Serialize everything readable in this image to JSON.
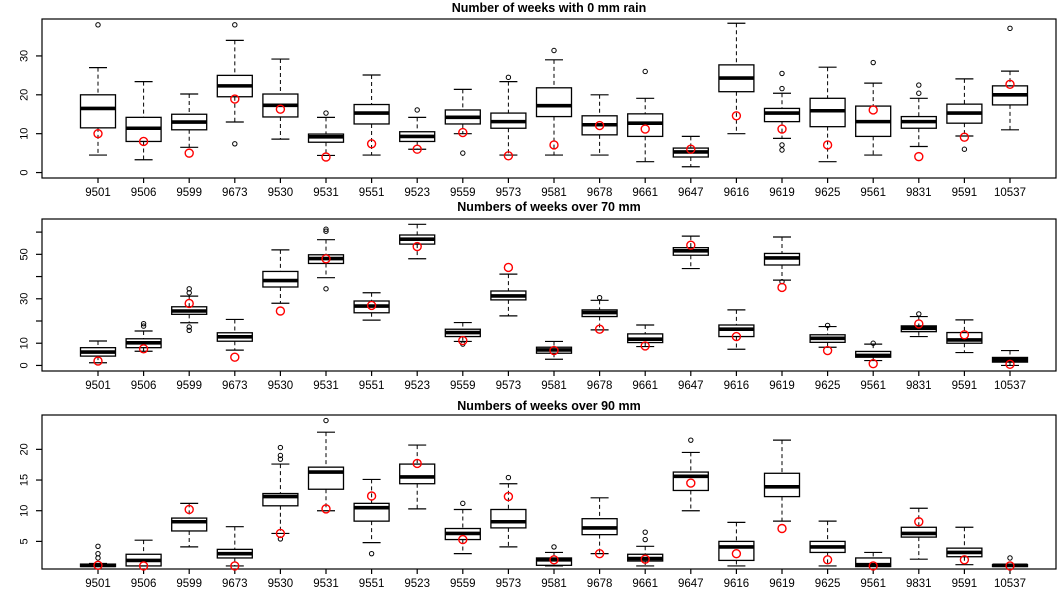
{
  "figure": {
    "background": "#ffffff",
    "colors": {
      "axis": "#000000",
      "box_stroke": "#000000",
      "box_fill": "#ffffff",
      "median": "#000000",
      "outlier": "#000000",
      "observed_marker": "#ff0000"
    }
  },
  "chart_data": [
    {
      "type": "boxplot",
      "title": "Number of weeks with 0 mm rain",
      "xlabel": "",
      "ylabel": "",
      "grid": false,
      "legend": "none",
      "ylim": [
        -1.4,
        39.5
      ],
      "yticks": [
        {
          "v": 0,
          "label": "0"
        },
        {
          "v": 10,
          "label": "10"
        },
        {
          "v": 20,
          "label": "20"
        },
        {
          "v": 30,
          "label": "30"
        }
      ],
      "categories": [
        "9501",
        "9506",
        "9599",
        "9673",
        "9530",
        "9531",
        "9551",
        "9523",
        "9559",
        "9573",
        "9581",
        "9678",
        "9661",
        "9647",
        "9616",
        "9619",
        "9625",
        "9561",
        "9831",
        "9591",
        "10537"
      ],
      "boxes": [
        {
          "station": "9501",
          "whisker_lo": 4.5,
          "q1": 11.5,
          "median": 16.5,
          "q3": 20.0,
          "whisker_hi": 27.0,
          "outliers": [
            38
          ],
          "red_point": 10
        },
        {
          "station": "9506",
          "whisker_lo": 3.3,
          "q1": 8.0,
          "median": 11.4,
          "q3": 14.2,
          "whisker_hi": 23.4,
          "outliers": [],
          "red_point": 8
        },
        {
          "station": "9599",
          "whisker_lo": 6.5,
          "q1": 11.0,
          "median": 13.0,
          "q3": 15.0,
          "whisker_hi": 20.2,
          "outliers": [],
          "red_point": 5
        },
        {
          "station": "9673",
          "whisker_lo": 13.0,
          "q1": 19.5,
          "median": 22.3,
          "q3": 25.0,
          "whisker_hi": 34.0,
          "outliers": [
            38,
            7.4
          ],
          "red_point": 18.9
        },
        {
          "station": "9530",
          "whisker_lo": 8.6,
          "q1": 14.3,
          "median": 17.3,
          "q3": 20.2,
          "whisker_hi": 29.2,
          "outliers": [],
          "red_point": 16.3
        },
        {
          "station": "9531",
          "whisker_lo": 4.4,
          "q1": 7.8,
          "median": 9.2,
          "q3": 9.9,
          "whisker_hi": 14.2,
          "outliers": [
            15.3
          ],
          "red_point": 4
        },
        {
          "station": "9551",
          "whisker_lo": 4.5,
          "q1": 12.5,
          "median": 15.3,
          "q3": 17.5,
          "whisker_hi": 25.1,
          "outliers": [],
          "red_point": 7.4
        },
        {
          "station": "9523",
          "whisker_lo": 6.0,
          "q1": 8.0,
          "median": 9.3,
          "q3": 10.5,
          "whisker_hi": 14.2,
          "outliers": [
            16.1
          ],
          "red_point": 6
        },
        {
          "station": "9559",
          "whisker_lo": 10.0,
          "q1": 12.5,
          "median": 14.2,
          "q3": 16.1,
          "whisker_hi": 21.4,
          "outliers": [
            5
          ],
          "red_point": 10.3
        },
        {
          "station": "9573",
          "whisker_lo": 4.5,
          "q1": 11.4,
          "median": 13.1,
          "q3": 15.3,
          "whisker_hi": 23.4,
          "outliers": [
            24.5
          ],
          "red_point": 4.3
        },
        {
          "station": "9581",
          "whisker_lo": 4.5,
          "q1": 14.4,
          "median": 17.2,
          "q3": 21.8,
          "whisker_hi": 29.0,
          "outliers": [
            31.4
          ],
          "red_point": 7.1
        },
        {
          "station": "9678",
          "whisker_lo": 4.5,
          "q1": 9.7,
          "median": 12.3,
          "q3": 14.6,
          "whisker_hi": 20.0,
          "outliers": [],
          "red_point": 12.1
        },
        {
          "station": "9661",
          "whisker_lo": 2.8,
          "q1": 9.3,
          "median": 12.7,
          "q3": 15.1,
          "whisker_hi": 19.1,
          "outliers": [
            26
          ],
          "red_point": 11.2
        },
        {
          "station": "9647",
          "whisker_lo": 1.5,
          "q1": 4.0,
          "median": 5.3,
          "q3": 6.3,
          "whisker_hi": 9.3,
          "outliers": [],
          "red_point": 6
        },
        {
          "station": "9616",
          "whisker_lo": 10.0,
          "q1": 20.8,
          "median": 24.3,
          "q3": 27.7,
          "whisker_hi": 38.4,
          "outliers": [],
          "red_point": 14.6
        },
        {
          "station": "9619",
          "whisker_lo": 8.8,
          "q1": 13.1,
          "median": 15.3,
          "q3": 16.5,
          "whisker_hi": 20.4,
          "outliers": [
            25.5,
            21.6,
            7.1,
            5.8
          ],
          "red_point": 11.2
        },
        {
          "station": "9625",
          "whisker_lo": 2.8,
          "q1": 11.8,
          "median": 15.9,
          "q3": 19.1,
          "whisker_hi": 27.1,
          "outliers": [],
          "red_point": 7.1
        },
        {
          "station": "9561",
          "whisker_lo": 4.5,
          "q1": 9.3,
          "median": 13.1,
          "q3": 17.1,
          "whisker_hi": 23.0,
          "outliers": [
            28.3
          ],
          "red_point": 16.1
        },
        {
          "station": "9831",
          "whisker_lo": 6.7,
          "q1": 11.4,
          "median": 13.1,
          "q3": 14.4,
          "whisker_hi": 19.1,
          "outliers": [
            22.5,
            20.4
          ],
          "red_point": 4.1
        },
        {
          "station": "9591",
          "whisker_lo": 9.4,
          "q1": 12.7,
          "median": 15.3,
          "q3": 17.6,
          "whisker_hi": 24.1,
          "outliers": [
            6
          ],
          "red_point": 9.1
        },
        {
          "station": "10537",
          "whisker_lo": 11.0,
          "q1": 17.4,
          "median": 20.0,
          "q3": 22.3,
          "whisker_hi": 26.1,
          "outliers": [
            37.1
          ],
          "red_point": 22.7
        }
      ]
    },
    {
      "type": "boxplot",
      "title": "Numbers of weeks over 70 mm",
      "xlabel": "",
      "ylabel": "",
      "grid": false,
      "legend": "none",
      "ylim": [
        -2.5,
        65.9
      ],
      "yticks": [
        {
          "v": 0,
          "label": "0"
        },
        {
          "v": 10,
          "label": "10"
        },
        {
          "v": 20,
          "label": ""
        },
        {
          "v": 30,
          "label": "30"
        },
        {
          "v": 40,
          "label": ""
        },
        {
          "v": 50,
          "label": "50"
        },
        {
          "v": 60,
          "label": ""
        }
      ],
      "categories": [
        "9501",
        "9506",
        "9599",
        "9673",
        "9530",
        "9531",
        "9551",
        "9523",
        "9559",
        "9573",
        "9581",
        "9678",
        "9661",
        "9647",
        "9616",
        "9619",
        "9625",
        "9561",
        "9831",
        "9591",
        "10537"
      ],
      "boxes": [
        {
          "station": "9501",
          "whisker_lo": 1.2,
          "q1": 4.2,
          "median": 6.0,
          "q3": 8.0,
          "whisker_hi": 11.0,
          "outliers": [],
          "red_point": 2
        },
        {
          "station": "9506",
          "whisker_lo": 6.4,
          "q1": 8.0,
          "median": 10.2,
          "q3": 12.0,
          "whisker_hi": 15.5,
          "outliers": [
            17.7,
            18.8
          ],
          "red_point": 7.5
        },
        {
          "station": "9599",
          "whisker_lo": 19.2,
          "q1": 23.0,
          "median": 24.5,
          "q3": 26.4,
          "whisker_hi": 31.2,
          "outliers": [
            34.5,
            32.7,
            17.3,
            15.8
          ],
          "red_point": 27.9
        },
        {
          "station": "9673",
          "whisker_lo": 6.9,
          "q1": 10.9,
          "median": 12.9,
          "q3": 14.7,
          "whisker_hi": 20.7,
          "outliers": [],
          "red_point": 3.7
        },
        {
          "station": "9530",
          "whisker_lo": 28.0,
          "q1": 35.3,
          "median": 38.2,
          "q3": 42.3,
          "whisker_hi": 52.0,
          "outliers": [],
          "red_point": 24.5
        },
        {
          "station": "9531",
          "whisker_lo": 39.5,
          "q1": 45.9,
          "median": 48.1,
          "q3": 49.8,
          "whisker_hi": 56.6,
          "outliers": [
            61.3,
            60.4,
            34.5
          ],
          "red_point": 48
        },
        {
          "station": "9551",
          "whisker_lo": 20.4,
          "q1": 23.7,
          "median": 26.7,
          "q3": 29.0,
          "whisker_hi": 32.7,
          "outliers": [],
          "red_point": 27
        },
        {
          "station": "9523",
          "whisker_lo": 48.0,
          "q1": 54.6,
          "median": 56.8,
          "q3": 58.7,
          "whisker_hi": 63.5,
          "outliers": [],
          "red_point": 53.5
        },
        {
          "station": "9559",
          "whisker_lo": 10.8,
          "q1": 13.0,
          "median": 14.8,
          "q3": 16.3,
          "whisker_hi": 19.3,
          "outliers": [
            9.6
          ],
          "red_point": 11.2
        },
        {
          "station": "9573",
          "whisker_lo": 22.3,
          "q1": 29.5,
          "median": 31.3,
          "q3": 33.5,
          "whisker_hi": 41.1,
          "outliers": [],
          "red_point": 44.1
        },
        {
          "station": "9581",
          "whisker_lo": 2.8,
          "q1": 5.5,
          "median": 7.0,
          "q3": 8.2,
          "whisker_hi": 10.8,
          "outliers": [],
          "red_point": 6.7
        },
        {
          "station": "9678",
          "whisker_lo": 16.0,
          "q1": 22.0,
          "median": 23.8,
          "q3": 25.0,
          "whisker_hi": 29.3,
          "outliers": [
            30.5
          ],
          "red_point": 16.3
        },
        {
          "station": "9661",
          "whisker_lo": 8.5,
          "q1": 10.3,
          "median": 11.8,
          "q3": 14.2,
          "whisker_hi": 18.2,
          "outliers": [],
          "red_point": 8.8
        },
        {
          "station": "9647",
          "whisker_lo": 43.6,
          "q1": 49.6,
          "median": 51.6,
          "q3": 53.0,
          "whisker_hi": 58.2,
          "outliers": [],
          "red_point": 54.1
        },
        {
          "station": "9616",
          "whisker_lo": 7.3,
          "q1": 13.0,
          "median": 16.3,
          "q3": 18.2,
          "whisker_hi": 25.0,
          "outliers": [],
          "red_point": 13
        },
        {
          "station": "9619",
          "whisker_lo": 38.4,
          "q1": 45.2,
          "median": 48.4,
          "q3": 50.4,
          "whisker_hi": 57.8,
          "outliers": [
            37.7
          ],
          "red_point": 35.1
        },
        {
          "station": "9625",
          "whisker_lo": 8.2,
          "q1": 10.4,
          "median": 12.2,
          "q3": 13.8,
          "whisker_hi": 17.5,
          "outliers": [
            18
          ],
          "red_point": 6.7
        },
        {
          "station": "9561",
          "whisker_lo": 2.2,
          "q1": 3.7,
          "median": 4.5,
          "q3": 6.3,
          "whisker_hi": 9.6,
          "outliers": [
            10
          ],
          "red_point": 0.8
        },
        {
          "station": "9831",
          "whisker_lo": 13.0,
          "q1": 15.2,
          "median": 16.7,
          "q3": 17.8,
          "whisker_hi": 22.0,
          "outliers": [
            23.2
          ],
          "red_point": 18.7
        },
        {
          "station": "9591",
          "whisker_lo": 5.8,
          "q1": 10.0,
          "median": 11.5,
          "q3": 14.8,
          "whisker_hi": 20.5,
          "outliers": [],
          "red_point": 13.8
        },
        {
          "station": "10537",
          "whisker_lo": 0.0,
          "q1": 1.5,
          "median": 2.6,
          "q3": 3.6,
          "whisker_hi": 6.7,
          "outliers": [],
          "red_point": 0.5
        }
      ]
    },
    {
      "type": "boxplot",
      "title": "Numbers of weeks over 90 mm",
      "xlabel": "",
      "ylabel": "",
      "grid": false,
      "legend": "none",
      "ylim": [
        0.5,
        25.6
      ],
      "yticks": [
        {
          "v": 5,
          "label": "5"
        },
        {
          "v": 10,
          "label": "10"
        },
        {
          "v": 15,
          "label": "15"
        },
        {
          "v": 20,
          "label": "20"
        }
      ],
      "categories": [
        "9501",
        "9506",
        "9599",
        "9673",
        "9530",
        "9531",
        "9551",
        "9523",
        "9559",
        "9573",
        "9581",
        "9678",
        "9661",
        "9647",
        "9616",
        "9619",
        "9625",
        "9561",
        "9831",
        "9591",
        "10537"
      ],
      "boxes": [
        {
          "station": "9501",
          "whisker_lo": 0.9,
          "q1": 0.9,
          "median": 1.1,
          "q3": 1.3,
          "whisker_hi": 1.4,
          "outliers": [
            4.2,
            3.0,
            2.3
          ],
          "red_point": 1.1
        },
        {
          "station": "9506",
          "whisker_lo": 1.0,
          "q1": 1.0,
          "median": 1.9,
          "q3": 2.9,
          "whisker_hi": 5.2,
          "outliers": [],
          "red_point": 1
        },
        {
          "station": "9599",
          "whisker_lo": 4.1,
          "q1": 6.7,
          "median": 8.2,
          "q3": 8.8,
          "whisker_hi": 11.2,
          "outliers": [],
          "red_point": 10.2
        },
        {
          "station": "9673",
          "whisker_lo": 1.0,
          "q1": 2.3,
          "median": 3.0,
          "q3": 3.7,
          "whisker_hi": 7.4,
          "outliers": [],
          "red_point": 1
        },
        {
          "station": "9530",
          "whisker_lo": 6.3,
          "q1": 10.8,
          "median": 12.3,
          "q3": 12.8,
          "whisker_hi": 17.6,
          "outliers": [
            20.3,
            19.0,
            18.4,
            5.4
          ],
          "red_point": 6.3
        },
        {
          "station": "9531",
          "whisker_lo": 10.0,
          "q1": 13.5,
          "median": 16.3,
          "q3": 17.1,
          "whisker_hi": 22.8,
          "outliers": [
            24.7
          ],
          "red_point": 10.3
        },
        {
          "station": "9551",
          "whisker_lo": 4.8,
          "q1": 8.3,
          "median": 10.5,
          "q3": 11.2,
          "whisker_hi": 15.1,
          "outliers": [
            3.0
          ],
          "red_point": 12.4
        },
        {
          "station": "9523",
          "whisker_lo": 10.3,
          "q1": 14.4,
          "median": 15.5,
          "q3": 17.6,
          "whisker_hi": 20.7,
          "outliers": [],
          "red_point": 17.7
        },
        {
          "station": "9559",
          "whisker_lo": 3.0,
          "q1": 5.3,
          "median": 6.3,
          "q3": 7.1,
          "whisker_hi": 10.2,
          "outliers": [
            11.2
          ],
          "red_point": 5.3
        },
        {
          "station": "9573",
          "whisker_lo": 4.1,
          "q1": 7.2,
          "median": 8.2,
          "q3": 10.2,
          "whisker_hi": 14.4,
          "outliers": [
            15.4
          ],
          "red_point": 12.3
        },
        {
          "station": "9581",
          "whisker_lo": 1.0,
          "q1": 1.1,
          "median": 2.0,
          "q3": 2.3,
          "whisker_hi": 3.2,
          "outliers": [
            4.1
          ],
          "red_point": 2
        },
        {
          "station": "9678",
          "whisker_lo": 3.0,
          "q1": 6.1,
          "median": 7.2,
          "q3": 8.7,
          "whisker_hi": 12.1,
          "outliers": [],
          "red_point": 3
        },
        {
          "station": "9661",
          "whisker_lo": 1.0,
          "q1": 1.8,
          "median": 2.2,
          "q3": 2.9,
          "whisker_hi": 4.2,
          "outliers": [
            5.3,
            6.5
          ],
          "red_point": 2.1
        },
        {
          "station": "9647",
          "whisker_lo": 10.0,
          "q1": 13.3,
          "median": 15.6,
          "q3": 16.3,
          "whisker_hi": 19.5,
          "outliers": [
            21.5
          ],
          "red_point": 14.5
        },
        {
          "station": "9616",
          "whisker_lo": 1.0,
          "q1": 1.9,
          "median": 4.1,
          "q3": 5.0,
          "whisker_hi": 8.1,
          "outliers": [],
          "red_point": 3
        },
        {
          "station": "9619",
          "whisker_lo": 8.3,
          "q1": 12.3,
          "median": 13.9,
          "q3": 16.1,
          "whisker_hi": 21.5,
          "outliers": [],
          "red_point": 7.1
        },
        {
          "station": "9625",
          "whisker_lo": 1.0,
          "q1": 3.2,
          "median": 4.1,
          "q3": 5.0,
          "whisker_hi": 8.3,
          "outliers": [],
          "red_point": 2
        },
        {
          "station": "9561",
          "whisker_lo": 0.9,
          "q1": 0.9,
          "median": 1.2,
          "q3": 2.3,
          "whisker_hi": 3.2,
          "outliers": [],
          "red_point": 1
        },
        {
          "station": "9831",
          "whisker_lo": 2.1,
          "q1": 5.7,
          "median": 6.3,
          "q3": 7.3,
          "whisker_hi": 10.4,
          "outliers": [],
          "red_point": 8.2
        },
        {
          "station": "9591",
          "whisker_lo": 1.2,
          "q1": 2.5,
          "median": 3.2,
          "q3": 3.9,
          "whisker_hi": 7.3,
          "outliers": [],
          "red_point": 2
        },
        {
          "station": "10537",
          "whisker_lo": 0.9,
          "q1": 0.9,
          "median": 1.1,
          "q3": 1.2,
          "whisker_hi": 1.3,
          "outliers": [
            2.3
          ],
          "red_point": 1
        }
      ]
    }
  ]
}
